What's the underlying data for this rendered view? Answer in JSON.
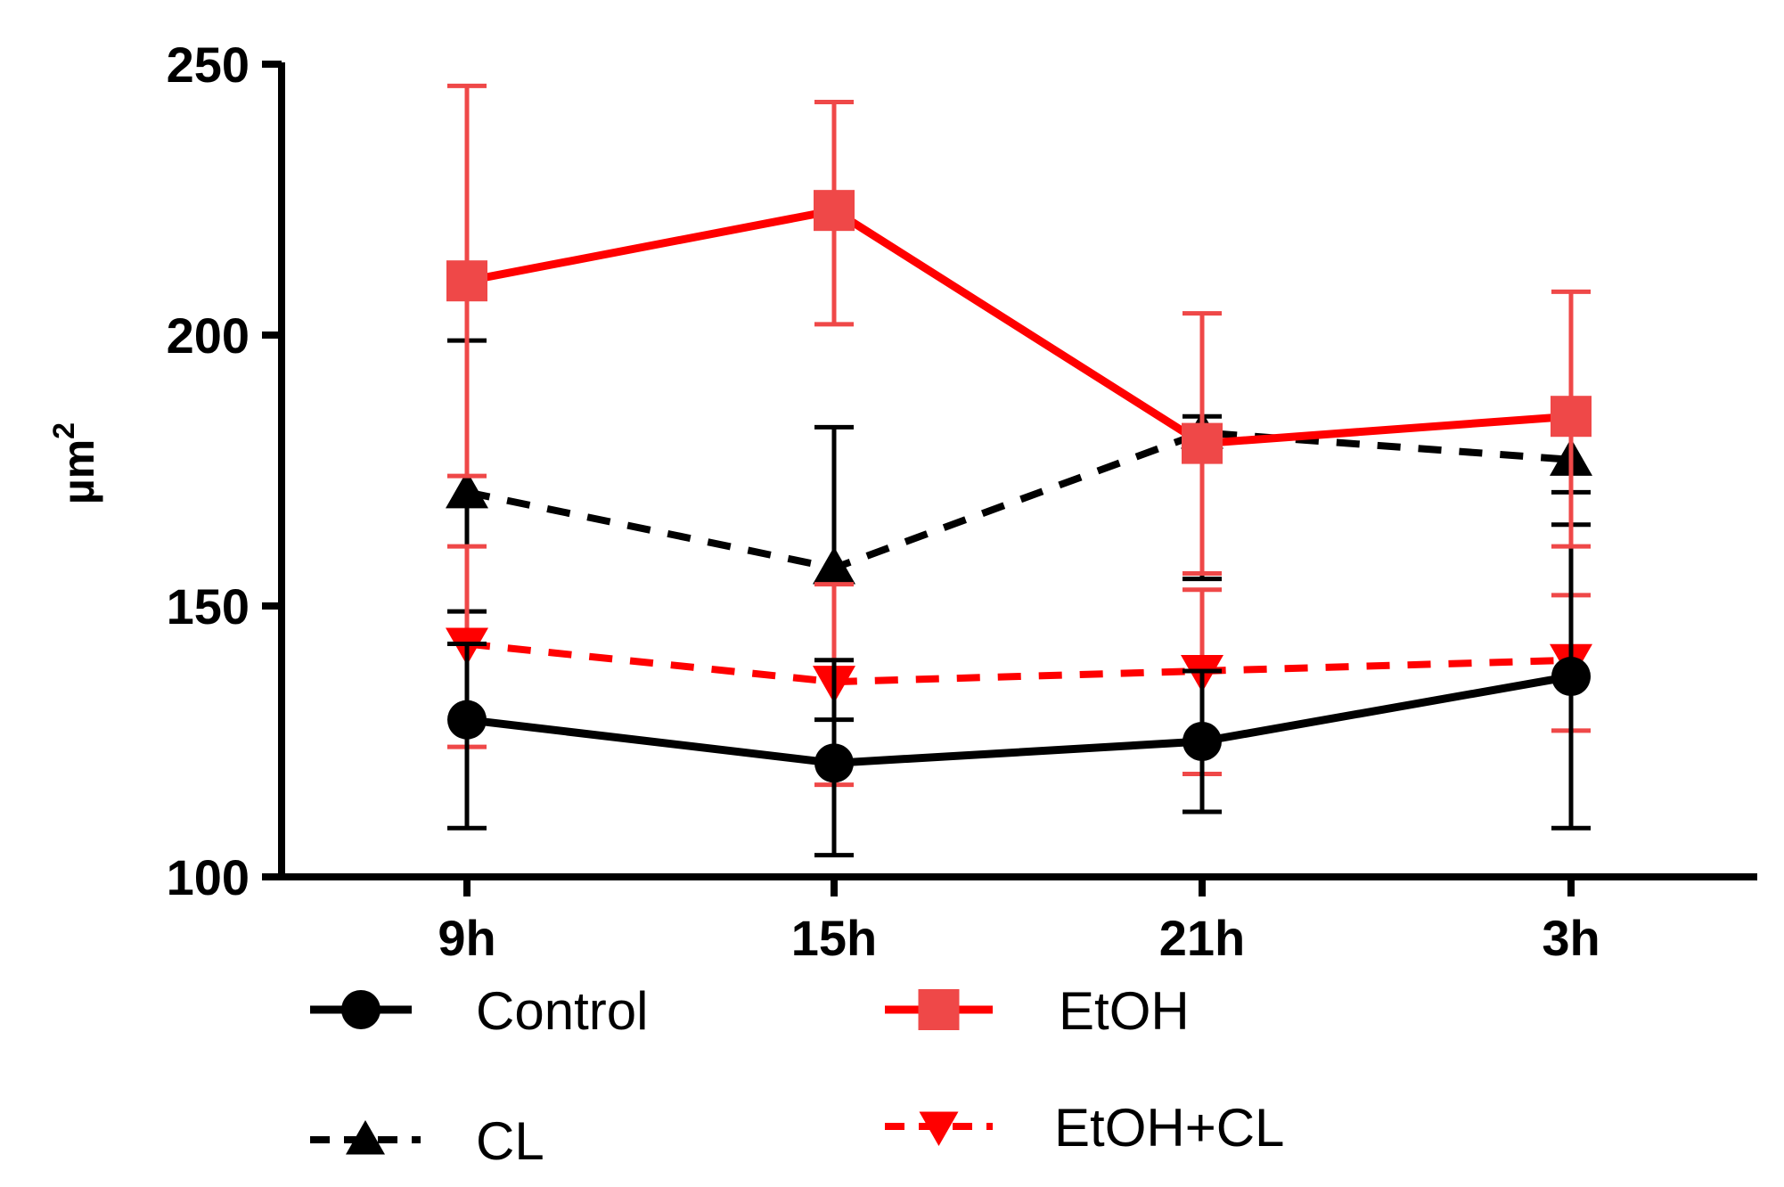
{
  "chart_data": {
    "type": "line",
    "title": "",
    "xlabel": "",
    "ylabel": "µm",
    "ylabel_superscript": "2",
    "categories": [
      "9h",
      "15h",
      "21h",
      "3h"
    ],
    "ylim": [
      100,
      250
    ],
    "yticks": [
      "100",
      "150",
      "200",
      "250"
    ],
    "series": [
      {
        "name": "Control",
        "color": "#000000",
        "dash": "solid",
        "marker": "circle",
        "values": [
          129,
          121,
          125,
          137
        ],
        "err_low": [
          109,
          104,
          112,
          109
        ],
        "err_high": [
          143,
          140,
          138,
          165
        ]
      },
      {
        "name": "EtOH",
        "color": "#ff0000",
        "marker_color": "#ef4848",
        "dash": "solid",
        "marker": "square",
        "values": [
          210,
          223,
          180,
          185
        ],
        "err_low": [
          174,
          202,
          156,
          161
        ],
        "err_high": [
          246,
          243,
          204,
          208
        ]
      },
      {
        "name": "CL",
        "color": "#000000",
        "dash": "dashed",
        "marker": "triangle-up",
        "values": [
          171,
          157,
          182,
          177
        ],
        "err_low": [
          149,
          129,
          155,
          171
        ],
        "err_high": [
          199,
          183,
          185,
          183
        ]
      },
      {
        "name": "EtOH+CL",
        "color": "#ff0000",
        "dash": "dashed",
        "marker": "triangle-down",
        "values": [
          143,
          136,
          138,
          140
        ],
        "err_low": [
          124,
          117,
          119,
          127
        ],
        "err_high": [
          161,
          154,
          153,
          152
        ]
      }
    ]
  }
}
